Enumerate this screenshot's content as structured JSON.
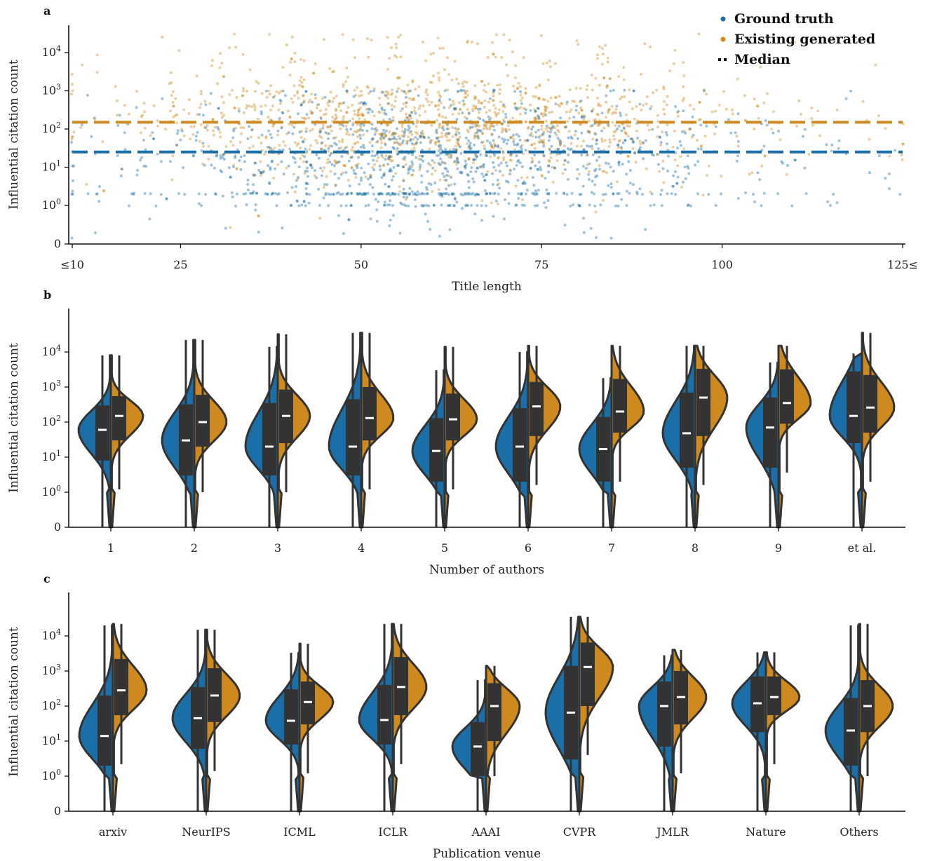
{
  "colors": {
    "ground_truth": "#1a6fa8",
    "generated": "#cf8a1f",
    "outline": "#333333",
    "median_mark": "#ffffff"
  },
  "chart_data": [
    {
      "panel": "a",
      "type": "scatter",
      "xlabel": "Title length",
      "ylabel": "Influential citation count",
      "x_ticks": [
        "≤10",
        "25",
        "50",
        "75",
        "100",
        "125≤"
      ],
      "x_tick_values": [
        10,
        25,
        50,
        75,
        100,
        125
      ],
      "xlim": [
        10,
        125
      ],
      "y_ticks": [
        "0",
        "10^0",
        "10^1",
        "10^2",
        "10^3",
        "10^4"
      ],
      "y_scale": "symlog",
      "ylim": [
        0,
        50000
      ],
      "legend": {
        "placement": "top-right",
        "entries": [
          "Ground truth",
          "Existing generated",
          "Median"
        ]
      },
      "series": [
        {
          "name": "Ground truth",
          "median": 25,
          "y_range": [
            0,
            1000
          ]
        },
        {
          "name": "Existing generated",
          "median": 150,
          "y_range": [
            0,
            30000
          ]
        }
      ]
    },
    {
      "panel": "b",
      "type": "violin",
      "xlabel": "Number of authors",
      "ylabel": "Influential citation count",
      "categories": [
        "1",
        "2",
        "3",
        "4",
        "5",
        "6",
        "7",
        "8",
        "9",
        "et al."
      ],
      "y_ticks": [
        "0",
        "10^0",
        "10^1",
        "10^2",
        "10^3",
        "10^4"
      ],
      "y_scale": "symlog",
      "series": [
        {
          "name": "Ground truth",
          "median": [
            60,
            30,
            20,
            20,
            15,
            20,
            17,
            48,
            70,
            150
          ],
          "q1": [
            8,
            3,
            3,
            3,
            2,
            2,
            2,
            5,
            5,
            25
          ],
          "q3": [
            300,
            320,
            350,
            450,
            130,
            250,
            140,
            700,
            500,
            2800
          ],
          "max": [
            8000,
            22000,
            14000,
            35000,
            3000,
            10000,
            1800,
            15000,
            5000,
            9000
          ]
        },
        {
          "name": "Existing generated",
          "median": [
            150,
            100,
            150,
            130,
            120,
            280,
            200,
            500,
            350,
            260
          ],
          "q1": [
            30,
            20,
            25,
            30,
            30,
            40,
            50,
            40,
            90,
            50
          ],
          "q3": [
            550,
            600,
            850,
            1000,
            650,
            1400,
            1700,
            3300,
            3200,
            2200
          ],
          "max": [
            8000,
            22000,
            32000,
            35000,
            14000,
            15000,
            15000,
            15000,
            15000,
            35000
          ]
        }
      ]
    },
    {
      "panel": "c",
      "type": "violin",
      "xlabel": "Publication venue",
      "ylabel": "Influential citation count",
      "categories": [
        "arxiv",
        "NeurIPS",
        "ICML",
        "ICLR",
        "AAAI",
        "CVPR",
        "JMLR",
        "Nature",
        "Others"
      ],
      "y_ticks": [
        "0",
        "10^0",
        "10^1",
        "10^2",
        "10^3",
        "10^4"
      ],
      "y_scale": "symlog",
      "series": [
        {
          "name": "Ground truth",
          "median": [
            14,
            45,
            38,
            40,
            7,
            65,
            100,
            120,
            20
          ],
          "q1": [
            2,
            6,
            8,
            8,
            1,
            3,
            7,
            18,
            2
          ],
          "q3": [
            200,
            350,
            300,
            400,
            35,
            1400,
            500,
            700,
            170
          ],
          "max": [
            20000,
            15000,
            3300,
            22000,
            550,
            35000,
            2800,
            3400,
            20000
          ]
        },
        {
          "name": "Existing generated",
          "median": [
            280,
            200,
            130,
            350,
            100,
            1300,
            180,
            180,
            100
          ],
          "q1": [
            55,
            35,
            30,
            55,
            10,
            100,
            30,
            55,
            18
          ],
          "q3": [
            2200,
            1200,
            500,
            2500,
            450,
            6500,
            1000,
            700,
            550
          ],
          "max": [
            22000,
            15000,
            6000,
            22000,
            1400,
            35000,
            4000,
            3400,
            22000
          ]
        }
      ]
    }
  ]
}
